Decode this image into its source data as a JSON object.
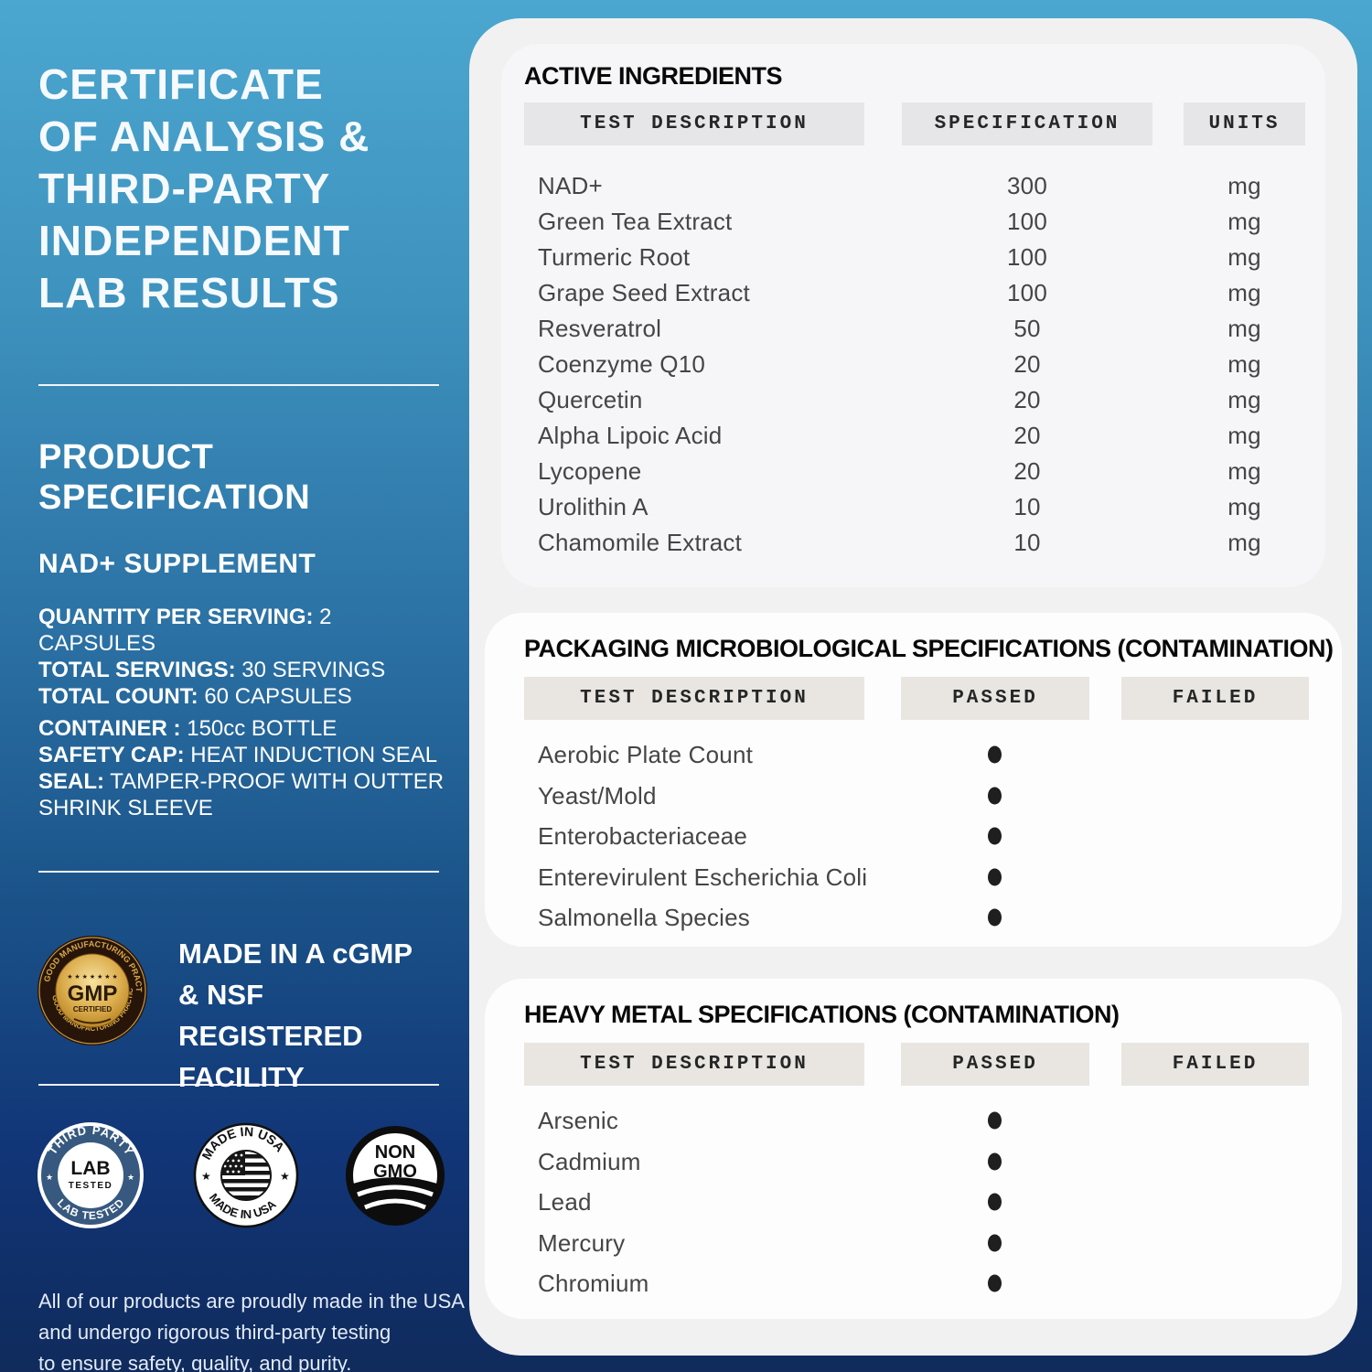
{
  "colors": {
    "background_top_blue": "#4BA7CF",
    "background_bottom_navy": "#102B5C",
    "panel_gray": "#F1F1F2",
    "card_white": "#FDFDFE",
    "header_cell_gray": "#E6E6E9",
    "header_cell_beige": "#E9E6E1",
    "gold_seal": "#D5A43C",
    "dot_black": "#1F1F1F"
  },
  "left_panel": {
    "title_lines": [
      "CERTIFICATE",
      "OF ANALYSIS &",
      "THIRD-PARTY",
      "INDEPENDENT",
      "LAB RESULTS"
    ],
    "section_heading_lines": [
      "PRODUCT",
      "SPECIFICATION"
    ],
    "product_name": "NAD+ SUPPLEMENT",
    "serving_specs": [
      {
        "label": "QUANTITY PER SERVING:",
        "value": "2 CAPSULES"
      },
      {
        "label": "TOTAL SERVINGS:",
        "value": "30 SERVINGS"
      },
      {
        "label": "TOTAL COUNT:",
        "value": "60 CAPSULES"
      }
    ],
    "container_specs": [
      {
        "label": "CONTAINER :",
        "value": "150cc BOTTLE"
      },
      {
        "label": "SAFETY CAP:",
        "value": "HEAT INDUCTION SEAL"
      },
      {
        "label": "SEAL:",
        "value": "TAMPER-PROOF WITH OUTTER SHRINK SLEEVE"
      }
    ],
    "gmp_seal": {
      "ring_text": "GOOD MANUFACTURING PRACTICE",
      "stars": "★ ★ ★ ★ ★ ★ ★",
      "center": "GMP",
      "sub": "CERTIFIED"
    },
    "gmp_text_lines": [
      "MADE IN A cGMP",
      "& NSF REGISTERED",
      "FACILITY"
    ],
    "badge_lab": {
      "top": "THIRD PARTY",
      "bottom": "LAB TESTED",
      "center1": "LAB",
      "center2": "TESTED",
      "star": "★"
    },
    "badge_usa": {
      "top": "MADE IN USA",
      "bottom": "MADE IN USA",
      "star": "★"
    },
    "badge_nongmo": {
      "line1": "NON",
      "line2": "GMO"
    },
    "footnote_lines": [
      "All of our products are proudly made in the USA",
      "and undergo rigorous third-party testing",
      "to ensure safety, quality, and purity."
    ]
  },
  "right_panel": {
    "sections": [
      {
        "type": "ingredients",
        "title": "ACTIVE INGREDIENTS",
        "columns": [
          "TEST DESCRIPTION",
          "SPECIFICATION",
          "UNITS"
        ],
        "rows": [
          {
            "name": "NAD+",
            "spec": "300",
            "unit": "mg"
          },
          {
            "name": "Green Tea Extract",
            "spec": "100",
            "unit": "mg"
          },
          {
            "name": "Turmeric Root",
            "spec": "100",
            "unit": "mg"
          },
          {
            "name": "Grape Seed Extract",
            "spec": "100",
            "unit": "mg"
          },
          {
            "name": "Resveratrol",
            "spec": "50",
            "unit": "mg"
          },
          {
            "name": "Coenzyme Q10",
            "spec": "20",
            "unit": "mg"
          },
          {
            "name": "Quercetin",
            "spec": "20",
            "unit": "mg"
          },
          {
            "name": "Alpha Lipoic Acid",
            "spec": "20",
            "unit": "mg"
          },
          {
            "name": "Lycopene",
            "spec": "20",
            "unit": "mg"
          },
          {
            "name": "Urolithin A",
            "spec": "10",
            "unit": "mg"
          },
          {
            "name": "Chamomile Extract",
            "spec": "10",
            "unit": "mg"
          }
        ]
      },
      {
        "type": "passfail",
        "title": "PACKAGING MICROBIOLOGICAL SPECIFICATIONS (CONTAMINATION)",
        "columns": [
          "TEST DESCRIPTION",
          "PASSED",
          "FAILED"
        ],
        "rows": [
          {
            "name": "Aerobic Plate Count",
            "result": "passed"
          },
          {
            "name": "Yeast/Mold",
            "result": "passed"
          },
          {
            "name": "Enterobacteriaceae",
            "result": "passed"
          },
          {
            "name": "Enterevirulent Escherichia Coli",
            "result": "passed"
          },
          {
            "name": "Salmonella Species",
            "result": "passed"
          }
        ]
      },
      {
        "type": "passfail",
        "title": "HEAVY METAL SPECIFICATIONS (CONTAMINATION)",
        "columns": [
          "TEST DESCRIPTION",
          "PASSED",
          "FAILED"
        ],
        "rows": [
          {
            "name": "Arsenic",
            "result": "passed"
          },
          {
            "name": "Cadmium",
            "result": "passed"
          },
          {
            "name": "Lead",
            "result": "passed"
          },
          {
            "name": "Mercury",
            "result": "passed"
          },
          {
            "name": "Chromium",
            "result": "passed"
          }
        ]
      }
    ]
  }
}
